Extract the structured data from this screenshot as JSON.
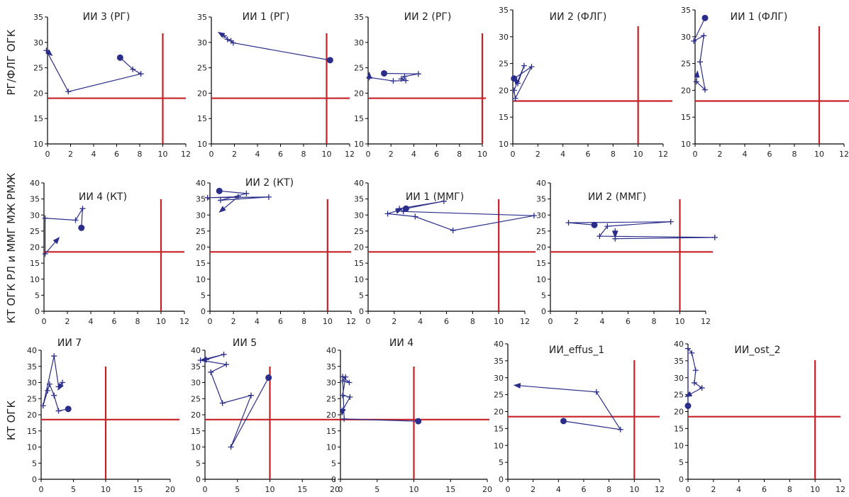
{
  "row_labels": [
    "РГ/ФЛГ ОГК",
    "КТ ОГК РЛ и ММГ МЖ РМЖ",
    "КТ ОГК"
  ],
  "colors": {
    "series": "#2b2d8a",
    "threshold": "#c62127",
    "axis": "#000000"
  },
  "chart_data": [
    {
      "type": "line",
      "row": 0,
      "col": 0,
      "title": "ИИ 3 (РГ)",
      "xlim": [
        0,
        12
      ],
      "ylim": [
        10,
        35
      ],
      "xticks": [
        0,
        2,
        4,
        6,
        8,
        10,
        12
      ],
      "yticks": [
        10,
        15,
        20,
        25,
        30,
        35
      ],
      "thresholds": {
        "x": 10,
        "y": 19
      },
      "points": [
        [
          6.3,
          27
        ],
        [
          7.4,
          24.7
        ],
        [
          8.1,
          23.8
        ],
        [
          1.8,
          20.3
        ],
        [
          -0.1,
          28.4
        ],
        [
          0.4,
          27.4
        ]
      ]
    },
    {
      "type": "line",
      "row": 0,
      "col": 1,
      "title": "ИИ 1 (РГ)",
      "xlim": [
        0,
        12
      ],
      "ylim": [
        10,
        35
      ],
      "xticks": [
        0,
        2,
        4,
        6,
        8,
        10,
        12
      ],
      "yticks": [
        10,
        15,
        20,
        25,
        30,
        35
      ],
      "thresholds": {
        "x": 10,
        "y": 19
      },
      "points": [
        [
          10.3,
          26.5
        ],
        [
          1.9,
          29.9
        ],
        [
          1.7,
          30.3
        ],
        [
          1.4,
          30.6
        ],
        [
          1.1,
          31.3
        ],
        [
          0.6,
          32
        ]
      ]
    },
    {
      "type": "line",
      "row": 0,
      "col": 2,
      "title": "ИИ 2 (РГ)",
      "xlim": [
        0,
        10
      ],
      "ylim": [
        10,
        35
      ],
      "xticks": [
        0,
        2,
        4,
        6,
        8,
        10
      ],
      "yticks": [
        10,
        15,
        20,
        25,
        30,
        35
      ],
      "thresholds": {
        "x": 10,
        "y": 19
      },
      "points": [
        [
          1.4,
          23.9
        ],
        [
          4.4,
          23.8
        ],
        [
          3.2,
          23.3
        ],
        [
          2.9,
          22.8
        ],
        [
          3.3,
          22.5
        ],
        [
          2.2,
          22.4
        ],
        [
          0.1,
          23.1
        ],
        [
          0.1,
          24.1
        ]
      ]
    },
    {
      "type": "line",
      "row": 0,
      "col": 3,
      "title": "ИИ 2 (ФЛГ)",
      "xlim": [
        0,
        12
      ],
      "ylim": [
        10,
        35
      ],
      "xticks": [
        0,
        2,
        4,
        6,
        8,
        10,
        12
      ],
      "yticks": [
        10,
        15,
        20,
        25,
        30,
        35
      ],
      "thresholds": {
        "x": 10,
        "y": 18
      },
      "points": [
        [
          0.1,
          22.2
        ],
        [
          1.5,
          24.4
        ],
        [
          0.2,
          18.5
        ],
        [
          0.1,
          20
        ],
        [
          0.9,
          24.6
        ],
        [
          0.4,
          21.3
        ],
        [
          0.1,
          22.3
        ]
      ]
    },
    {
      "type": "line",
      "row": 0,
      "col": 4,
      "title": "ИИ 1 (ФЛГ)",
      "xlim": [
        0,
        12
      ],
      "ylim": [
        10,
        35
      ],
      "xticks": [
        0,
        2,
        4,
        6,
        8,
        10,
        12
      ],
      "yticks": [
        10,
        15,
        20,
        25,
        30,
        35
      ],
      "thresholds": {
        "x": 10,
        "y": 18
      },
      "points": [
        [
          0.8,
          33.5
        ],
        [
          -0.1,
          29.2
        ],
        [
          0.7,
          30.2
        ],
        [
          0.4,
          25.3
        ],
        [
          0.8,
          20.1
        ],
        [
          0.1,
          21.6
        ],
        [
          0.2,
          23.6
        ]
      ]
    },
    {
      "type": "line",
      "row": 1,
      "col": 0,
      "title": "ИИ 4 (КТ)",
      "xlim": [
        0,
        12
      ],
      "ylim": [
        0,
        40
      ],
      "xticks": [
        0,
        2,
        4,
        6,
        8,
        10,
        12
      ],
      "yticks": [
        0,
        5,
        10,
        15,
        20,
        25,
        30,
        35,
        40
      ],
      "thresholds": {
        "x": 10,
        "y": 18.5
      },
      "points": [
        [
          3.2,
          26
        ],
        [
          3.3,
          32
        ],
        [
          2.7,
          28.4
        ],
        [
          0.1,
          29
        ],
        [
          0.1,
          17.9
        ],
        [
          1.3,
          23
        ]
      ]
    },
    {
      "type": "line",
      "row": 1,
      "col": 1,
      "title": "ИИ 2 (КТ)",
      "xlim": [
        0,
        12
      ],
      "ylim": [
        0,
        40
      ],
      "xticks": [
        0,
        2,
        4,
        6,
        8,
        10,
        12
      ],
      "yticks": [
        0,
        5,
        10,
        15,
        20,
        25,
        30,
        35,
        40
      ],
      "thresholds": {
        "x": 10,
        "y": 18.5
      },
      "points": [
        [
          0.8,
          37.5
        ],
        [
          3.1,
          36.7
        ],
        [
          0.9,
          34.6
        ],
        [
          5.0,
          35.6
        ],
        [
          -0.2,
          35.4
        ],
        [
          2.4,
          35.7
        ],
        [
          0.8,
          30.9
        ]
      ]
    },
    {
      "type": "line",
      "row": 1,
      "col": 2,
      "title": "ИИ 1 (ММГ)",
      "xlim": [
        0,
        12
      ],
      "ylim": [
        0,
        40
      ],
      "xticks": [
        0,
        2,
        4,
        6,
        8,
        10,
        12
      ],
      "yticks": [
        0,
        5,
        10,
        15,
        20,
        25,
        30,
        35,
        40
      ],
      "thresholds": {
        "x": 10,
        "y": 18.5
      },
      "points": [
        [
          2.9,
          32
        ],
        [
          5.8,
          34.3
        ],
        [
          2.4,
          32
        ],
        [
          2.7,
          31.1
        ],
        [
          12.7,
          29.8
        ],
        [
          6.5,
          25.2
        ],
        [
          3.6,
          29.5
        ],
        [
          1.5,
          30.4
        ],
        [
          2.6,
          31.8
        ]
      ]
    },
    {
      "type": "line",
      "row": 1,
      "col": 3,
      "title": "ИИ 2 (ММГ)",
      "xlim": [
        0,
        12
      ],
      "ylim": [
        0,
        40
      ],
      "xticks": [
        0,
        2,
        4,
        6,
        8,
        10,
        12
      ],
      "yticks": [
        0,
        5,
        10,
        15,
        20,
        25,
        30,
        35,
        40
      ],
      "thresholds": {
        "x": 10,
        "y": 18.5
      },
      "points": [
        [
          3.4,
          26.9
        ],
        [
          1.4,
          27.6
        ],
        [
          9.3,
          27.9
        ],
        [
          4.4,
          26.5
        ],
        [
          3.8,
          23.4
        ],
        [
          12.7,
          23
        ],
        [
          5.0,
          22.6
        ],
        [
          5.0,
          25
        ],
        [
          5.0,
          22.9
        ]
      ]
    },
    {
      "type": "line",
      "row": 2,
      "col": 0,
      "title": "ИИ 7",
      "xlim": [
        0,
        20
      ],
      "ylim": [
        0,
        40
      ],
      "xticks": [
        0,
        5,
        10,
        15,
        20
      ],
      "yticks": [
        0,
        5,
        10,
        15,
        20,
        25,
        30,
        35,
        40
      ],
      "thresholds": {
        "x": 10,
        "y": 18.5
      },
      "points": [
        [
          4.2,
          21.8
        ],
        [
          2.7,
          21.2
        ],
        [
          2.0,
          26
        ],
        [
          1.3,
          29.5
        ],
        [
          1.0,
          27.5
        ],
        [
          0.3,
          22.8
        ],
        [
          2.0,
          38.2
        ],
        [
          2.7,
          28.7
        ],
        [
          3.3,
          30
        ],
        [
          2.6,
          27.7
        ]
      ]
    },
    {
      "type": "line",
      "row": 2,
      "col": 1,
      "title": "ИИ 5",
      "xlim": [
        0,
        20
      ],
      "ylim": [
        0,
        40
      ],
      "xticks": [
        0,
        5,
        10,
        15,
        20
      ],
      "yticks": [
        0,
        5,
        10,
        15,
        20,
        25,
        30,
        35,
        40
      ],
      "thresholds": {
        "x": 10,
        "y": 18.5
      },
      "points": [
        [
          9.8,
          31.5
        ],
        [
          4.0,
          10
        ],
        [
          7.1,
          26
        ],
        [
          2.7,
          23.6
        ],
        [
          0.9,
          33.2
        ],
        [
          3.3,
          35.6
        ],
        [
          -0.7,
          36.9
        ],
        [
          2.9,
          38.7
        ],
        [
          0.2,
          37.1
        ],
        [
          -0.7,
          36.9
        ]
      ]
    },
    {
      "type": "line",
      "row": 2,
      "col": 2,
      "title": "ИИ 4",
      "xlim": [
        0,
        20
      ],
      "ylim": [
        0,
        40
      ],
      "xticks": [
        0,
        5,
        10,
        15,
        20
      ],
      "yticks": [
        0,
        5,
        10,
        15,
        20,
        25,
        30,
        35,
        40
      ],
      "thresholds": {
        "x": 10,
        "y": 18.5
      },
      "points": [
        [
          10.6,
          18
        ],
        [
          0.5,
          18.7
        ],
        [
          0.3,
          31.8
        ],
        [
          1.2,
          30
        ],
        [
          0.3,
          30.5
        ],
        [
          0.7,
          31.7
        ],
        [
          0.3,
          26
        ],
        [
          1.3,
          25.5
        ],
        [
          0.3,
          21.4
        ],
        [
          0.2,
          19.9
        ]
      ]
    },
    {
      "type": "line",
      "row": 2,
      "col": 3,
      "title": "ИИ_effus_1",
      "xlim": [
        0,
        12
      ],
      "ylim": [
        0,
        40
      ],
      "xticks": [
        0,
        2,
        4,
        6,
        8,
        10,
        12
      ],
      "yticks": [
        0,
        5,
        10,
        15,
        20,
        25,
        30,
        35,
        40
      ],
      "thresholds": {
        "x": 10,
        "y": 18.5
      },
      "points": [
        [
          4.4,
          17.2
        ],
        [
          8.9,
          14.7
        ],
        [
          7.0,
          25.8
        ],
        [
          0.5,
          27.8
        ]
      ]
    },
    {
      "type": "line",
      "row": 2,
      "col": 4,
      "title": "ИИ_ost_2",
      "xlim": [
        0,
        12
      ],
      "ylim": [
        0,
        40
      ],
      "xticks": [
        0,
        2,
        4,
        6,
        8,
        10,
        12
      ],
      "yticks": [
        0,
        5,
        10,
        15,
        20,
        25,
        30,
        35,
        40
      ],
      "thresholds": {
        "x": 10,
        "y": 18.5
      },
      "points": [
        [
          0.0,
          21.7
        ],
        [
          0.0,
          38.6
        ],
        [
          0.3,
          37.3
        ],
        [
          0.6,
          32.2
        ],
        [
          0.5,
          28.5
        ],
        [
          1.1,
          27
        ],
        [
          -0.2,
          24.4
        ]
      ]
    }
  ]
}
